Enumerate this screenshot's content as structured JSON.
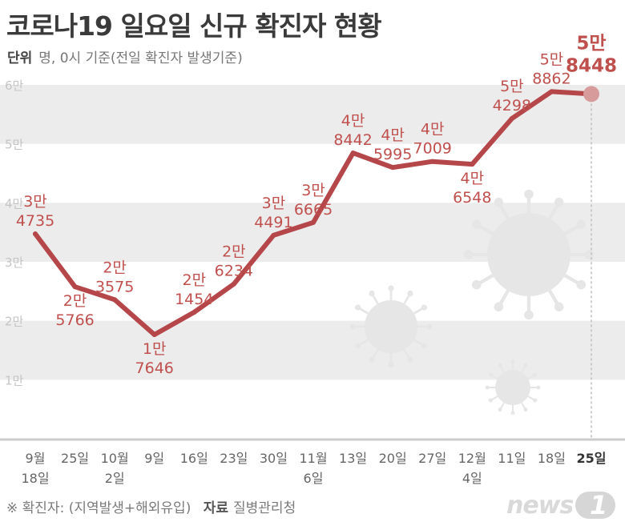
{
  "title": "코로나19 일요일 신규 확진자 현황",
  "unit_label": "단위",
  "unit_text": "명, 0시 기준(전일 확진자 발생기준)",
  "footnote": {
    "note": "※ 확진자: (지역발생+해외유입)",
    "source_label": "자료",
    "source": "질병관리청"
  },
  "logo": {
    "text": "news",
    "badge": "1"
  },
  "colors": {
    "line": "#b5474a",
    "label": "#c0504d",
    "band": "#ececec",
    "virus": "#e6e6e6"
  },
  "chart_data": {
    "type": "line",
    "title": "코로나19 일요일 신규 확진자 현황",
    "ylabel": "명",
    "ylim": [
      0,
      60000
    ],
    "y_ticks": [
      "6만",
      "5만",
      "4만",
      "3만",
      "2만",
      "1만"
    ],
    "categories": [
      [
        "9월",
        "18일"
      ],
      [
        "25일"
      ],
      [
        "10월",
        "2일"
      ],
      [
        "9일"
      ],
      [
        "16일"
      ],
      [
        "23일"
      ],
      [
        "30일"
      ],
      [
        "11월",
        "6일"
      ],
      [
        "13일"
      ],
      [
        "20일"
      ],
      [
        "27일"
      ],
      [
        "12월",
        "4일"
      ],
      [
        "11일"
      ],
      [
        "18일"
      ],
      [
        "25일"
      ]
    ],
    "values": [
      34735,
      25766,
      23575,
      17646,
      21454,
      26234,
      34491,
      36665,
      48442,
      45995,
      47009,
      46548,
      54298,
      58862,
      58448
    ],
    "labels": [
      [
        "3만",
        "4735"
      ],
      [
        "2만",
        "5766"
      ],
      [
        "2만",
        "3575"
      ],
      [
        "1만",
        "7646"
      ],
      [
        "2만",
        "1454"
      ],
      [
        "2만",
        "6234"
      ],
      [
        "3만",
        "4491"
      ],
      [
        "3만",
        "6665"
      ],
      [
        "4만",
        "8442"
      ],
      [
        "4만",
        "5995"
      ],
      [
        "4만",
        "7009"
      ],
      [
        "4만",
        "6548"
      ],
      [
        "5만",
        "4298"
      ],
      [
        "5만",
        "8862"
      ],
      [
        "5만",
        "8448"
      ]
    ],
    "highlight_index": 14
  }
}
